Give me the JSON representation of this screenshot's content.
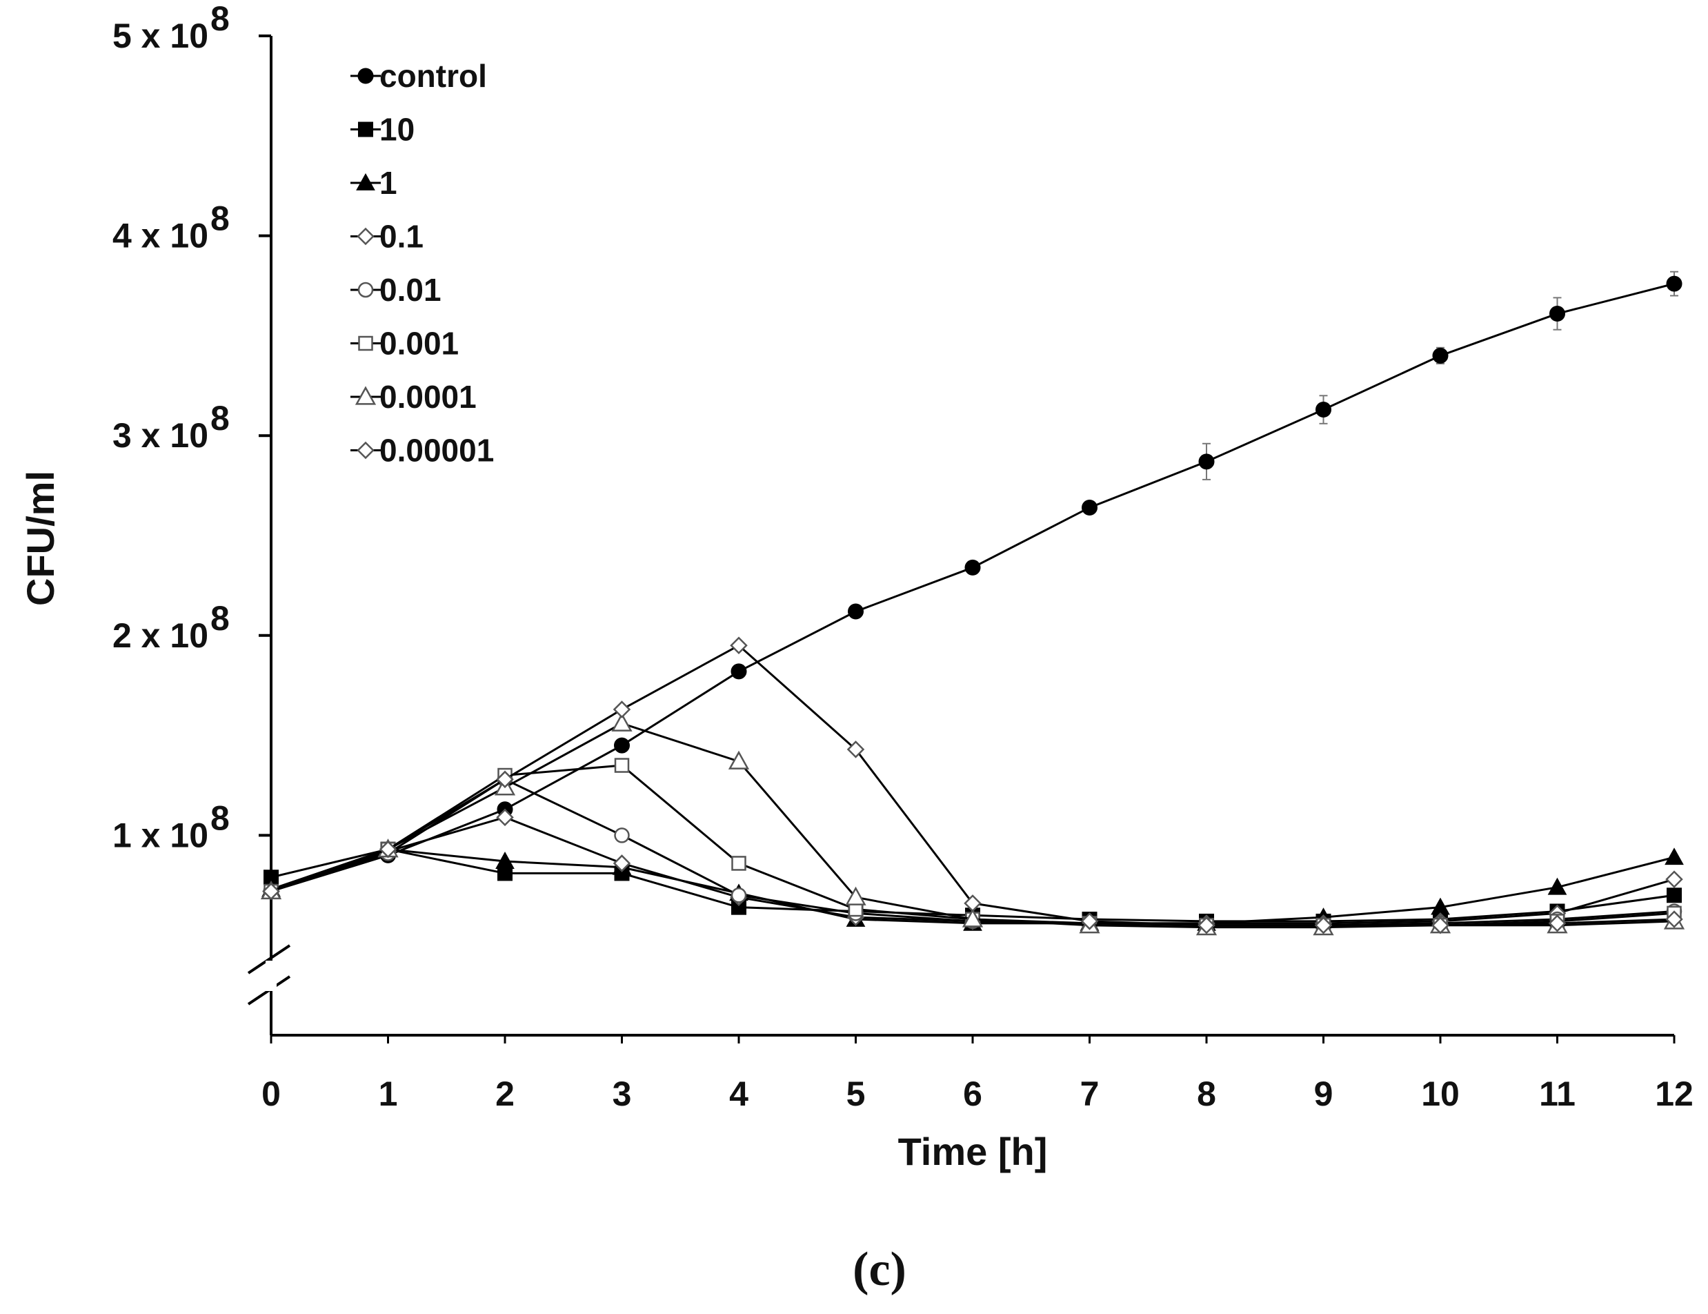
{
  "chart_data": {
    "type": "line",
    "title": "",
    "xlabel": "Time [h]",
    "ylabel": "CFU/ml",
    "panel_label": "(c)",
    "x": [
      0,
      1,
      2,
      3,
      4,
      5,
      6,
      7,
      8,
      9,
      10,
      11,
      12
    ],
    "x_tick_labels": [
      "0",
      "1",
      "2",
      "3",
      "4",
      "5",
      "6",
      "7",
      "8",
      "9",
      "10",
      "11",
      "12"
    ],
    "xlim": [
      0,
      12
    ],
    "ylim": [
      0,
      500000000
    ],
    "y_axis_break": true,
    "y_ticks": [
      {
        "value": 100000000,
        "mantissa": "1 x 10",
        "exponent": "8"
      },
      {
        "value": 200000000,
        "mantissa": "2 x 10",
        "exponent": "8"
      },
      {
        "value": 300000000,
        "mantissa": "3 x 10",
        "exponent": "8"
      },
      {
        "value": 400000000,
        "mantissa": "4 x 10",
        "exponent": "8"
      },
      {
        "value": 500000000,
        "mantissa": "5 x 10",
        "exponent": "8"
      }
    ],
    "legend_position": "top-left",
    "series": [
      {
        "name": "control",
        "marker": "circle-filled",
        "values": [
          72000000,
          90000000,
          113000000,
          145000000,
          182000000,
          212000000,
          234000000,
          264000000,
          287000000,
          313000000,
          340000000,
          361000000,
          376000000
        ],
        "errors": [
          0,
          0,
          0,
          0,
          0,
          0,
          0,
          0,
          9000000,
          7000000,
          4000000,
          8000000,
          6000000
        ]
      },
      {
        "name": "10",
        "marker": "square-filled",
        "values": [
          79000000,
          93000000,
          81000000,
          81000000,
          64000000,
          62000000,
          60000000,
          58000000,
          57000000,
          57000000,
          58000000,
          62000000,
          70000000
        ]
      },
      {
        "name": "1",
        "marker": "triangle-filled",
        "values": [
          73000000,
          93000000,
          87000000,
          84000000,
          71000000,
          58000000,
          56000000,
          56000000,
          56000000,
          59000000,
          64000000,
          74000000,
          89000000
        ]
      },
      {
        "name": "0.1",
        "marker": "diamond-open",
        "values": [
          72000000,
          92000000,
          109000000,
          86000000,
          69000000,
          59000000,
          57000000,
          56000000,
          56000000,
          56000000,
          57000000,
          61000000,
          78000000
        ]
      },
      {
        "name": "0.01",
        "marker": "circle-open",
        "values": [
          72000000,
          91000000,
          128000000,
          100000000,
          70000000,
          61000000,
          57000000,
          56000000,
          55000000,
          55000000,
          56000000,
          58000000,
          62000000
        ]
      },
      {
        "name": "0.001",
        "marker": "square-open",
        "values": [
          72000000,
          93000000,
          130000000,
          135000000,
          86000000,
          63000000,
          58000000,
          56000000,
          55000000,
          55000000,
          55000000,
          57000000,
          61000000
        ]
      },
      {
        "name": "0.0001",
        "marker": "triangle-open",
        "values": [
          72000000,
          93000000,
          124000000,
          156000000,
          137000000,
          69000000,
          58000000,
          55000000,
          54000000,
          54000000,
          55000000,
          55000000,
          57000000
        ]
      },
      {
        "name": "0.00001",
        "marker": "diamond-open",
        "values": [
          72000000,
          93000000,
          128000000,
          163000000,
          195000000,
          143000000,
          66000000,
          57000000,
          55000000,
          55000000,
          55000000,
          56000000,
          58000000
        ]
      }
    ]
  },
  "colors": {
    "line": "#000000",
    "marker_fill": "#000000",
    "open_marker_fill": "#ffffff",
    "open_marker_stroke": "#555555"
  }
}
